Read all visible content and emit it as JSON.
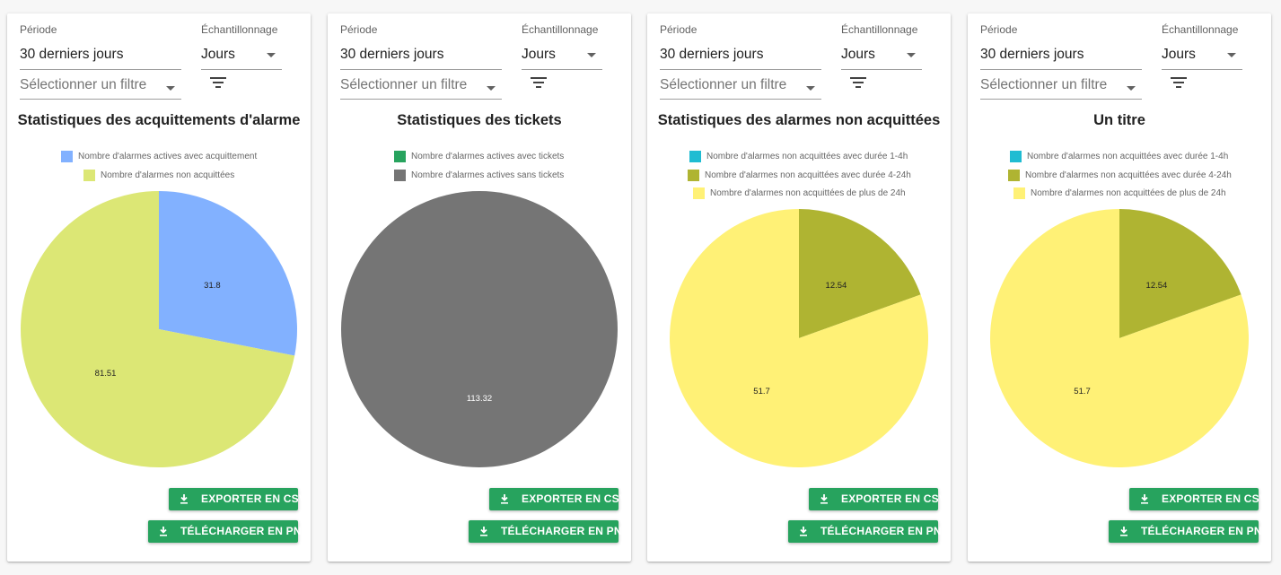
{
  "cards": [
    {
      "period_label": "Période",
      "period_value": "30 derniers jours",
      "sampling_label": "Échantillonnage",
      "sampling_value": "Jours",
      "filter_placeholder": "Sélectionner un filtre",
      "export_csv_label": "EXPORTER EN CSV",
      "download_png_label": "TÉLÉCHARGER EN PNG",
      "chart_data": {
        "type": "pie",
        "title": "Statistiques des acquittements d'alarme",
        "series": [
          {
            "name": "Nombre d'alarmes actives avec acquittement",
            "value": 31.8,
            "color": "#82b1ff"
          },
          {
            "name": "Nombre d'alarmes non acquittées",
            "value": 81.51,
            "color": "#dce775"
          }
        ]
      }
    },
    {
      "period_label": "Période",
      "period_value": "30 derniers jours",
      "sampling_label": "Échantillonnage",
      "sampling_value": "Jours",
      "filter_placeholder": "Sélectionner un filtre",
      "export_csv_label": "EXPORTER EN CSV",
      "download_png_label": "TÉLÉCHARGER EN PNG",
      "chart_data": {
        "type": "pie",
        "title": "Statistiques des tickets",
        "series": [
          {
            "name": "Nombre d'alarmes actives avec tickets",
            "value": 0,
            "color": "#27a35e"
          },
          {
            "name": "Nombre d'alarmes actives sans tickets",
            "value": 113.32,
            "color": "#757575"
          }
        ]
      }
    },
    {
      "period_label": "Période",
      "period_value": "30 derniers jours",
      "sampling_label": "Échantillonnage",
      "sampling_value": "Jours",
      "filter_placeholder": "Sélectionner un filtre",
      "export_csv_label": "EXPORTER EN CSV",
      "download_png_label": "TÉLÉCHARGER EN PNG",
      "chart_data": {
        "type": "pie",
        "title": "Statistiques des alarmes non acquittées",
        "series": [
          {
            "name": "Nombre d'alarmes non acquittées avec durée 1-4h",
            "value": 0,
            "color": "#1fbcd2"
          },
          {
            "name": "Nombre d'alarmes non acquittées avec durée 4-24h",
            "value": 12.54,
            "color": "#afb432"
          },
          {
            "name": "Nombre d'alarmes non acquittées de plus de 24h",
            "value": 51.7,
            "color": "#fff176"
          }
        ]
      }
    },
    {
      "period_label": "Période",
      "period_value": "30 derniers jours",
      "sampling_label": "Échantillonnage",
      "sampling_value": "Jours",
      "filter_placeholder": "Sélectionner un filtre",
      "export_csv_label": "EXPORTER EN CSV",
      "download_png_label": "TÉLÉCHARGER EN PNG",
      "chart_data": {
        "type": "pie",
        "title": "Un titre",
        "series": [
          {
            "name": "Nombre d'alarmes non acquittées avec durée 1-4h",
            "value": 0,
            "color": "#1fbcd2"
          },
          {
            "name": "Nombre d'alarmes non acquittées avec durée 4-24h",
            "value": 12.54,
            "color": "#afb432"
          },
          {
            "name": "Nombre d'alarmes non acquittées de plus de 24h",
            "value": 51.7,
            "color": "#fff176"
          }
        ]
      }
    }
  ]
}
